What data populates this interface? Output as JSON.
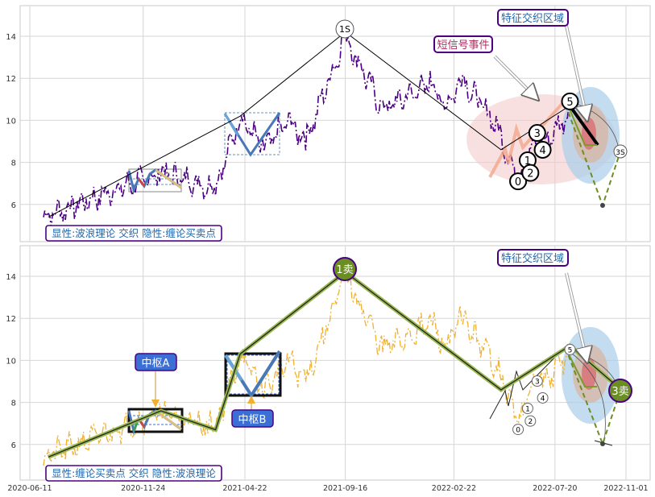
{
  "chart_data": [
    {
      "type": "line",
      "ylim": [
        4.5,
        15.5
      ],
      "y_ticks": [
        6,
        8,
        10,
        12,
        14
      ],
      "legend": "显性:波浪理论 交织 隐性:缠论买卖点",
      "wave_labels": [
        "0",
        "1",
        "2",
        "3",
        "4",
        "5"
      ],
      "wave_points": [
        {
          "date": "2022-05-27",
          "value": 7.1
        },
        {
          "date": "2022-06-10",
          "value": 8.1
        },
        {
          "date": "2022-06-14",
          "value": 7.5
        },
        {
          "date": "2022-06-24",
          "value": 9.4
        },
        {
          "date": "2022-07-02",
          "value": 8.6
        },
        {
          "date": "2022-08-11",
          "value": 10.9
        }
      ],
      "zigzag": [
        {
          "date": "2020-07-08",
          "value": 5.4
        },
        {
          "date": "2021-04-15",
          "value": 10.2
        },
        {
          "date": "2021-09-16",
          "value": 14.2
        },
        {
          "date": "2022-05-02",
          "value": 8.6
        },
        {
          "date": "2022-08-11",
          "value": 10.7
        }
      ],
      "point_labels": [
        "1S",
        "3S"
      ],
      "annotations": [
        "短信号事件",
        "特征交织区域"
      ]
    },
    {
      "type": "line",
      "ylim": [
        4.5,
        15.5
      ],
      "y_ticks": [
        6,
        8,
        10,
        12,
        14
      ],
      "x_ticks": [
        "2020-06-11",
        "2020-11-24",
        "2021-04-22",
        "2021-09-16",
        "2022-02-22",
        "2022-07-20",
        "2022-11-01"
      ],
      "legend": "显性:缠论买卖点 交织 隐性:波浪理论",
      "wave_labels": [
        "0",
        "1",
        "2",
        "3",
        "4",
        "5"
      ],
      "zigzag": [
        {
          "date": "2020-07-08",
          "value": 5.4
        },
        {
          "date": "2020-12-20",
          "value": 7.6
        },
        {
          "date": "2021-03-10",
          "value": 6.7
        },
        {
          "date": "2021-04-15",
          "value": 10.3
        },
        {
          "date": "2021-09-16",
          "value": 14.2
        },
        {
          "date": "2022-05-02",
          "value": 8.6
        },
        {
          "date": "2022-08-11",
          "value": 10.7
        },
        {
          "date": "2022-10-25",
          "value": 8.6
        }
      ],
      "signals": [
        "1卖",
        "3卖"
      ],
      "centers": [
        "中枢A",
        "中枢B"
      ],
      "annotations": [
        "特征交织区域"
      ]
    }
  ],
  "colors": {
    "price_top": "#4b0082",
    "price_bottom": "#f0b030",
    "zigzag": "#000000",
    "ellipse_pink": "#f4c6c6",
    "ellipse_blue": "#a9cde8",
    "label_text": "#2166ac",
    "label_border": "#4b0082",
    "signal_fill": "#6b8e23",
    "center_box": "#3b6fd6"
  }
}
